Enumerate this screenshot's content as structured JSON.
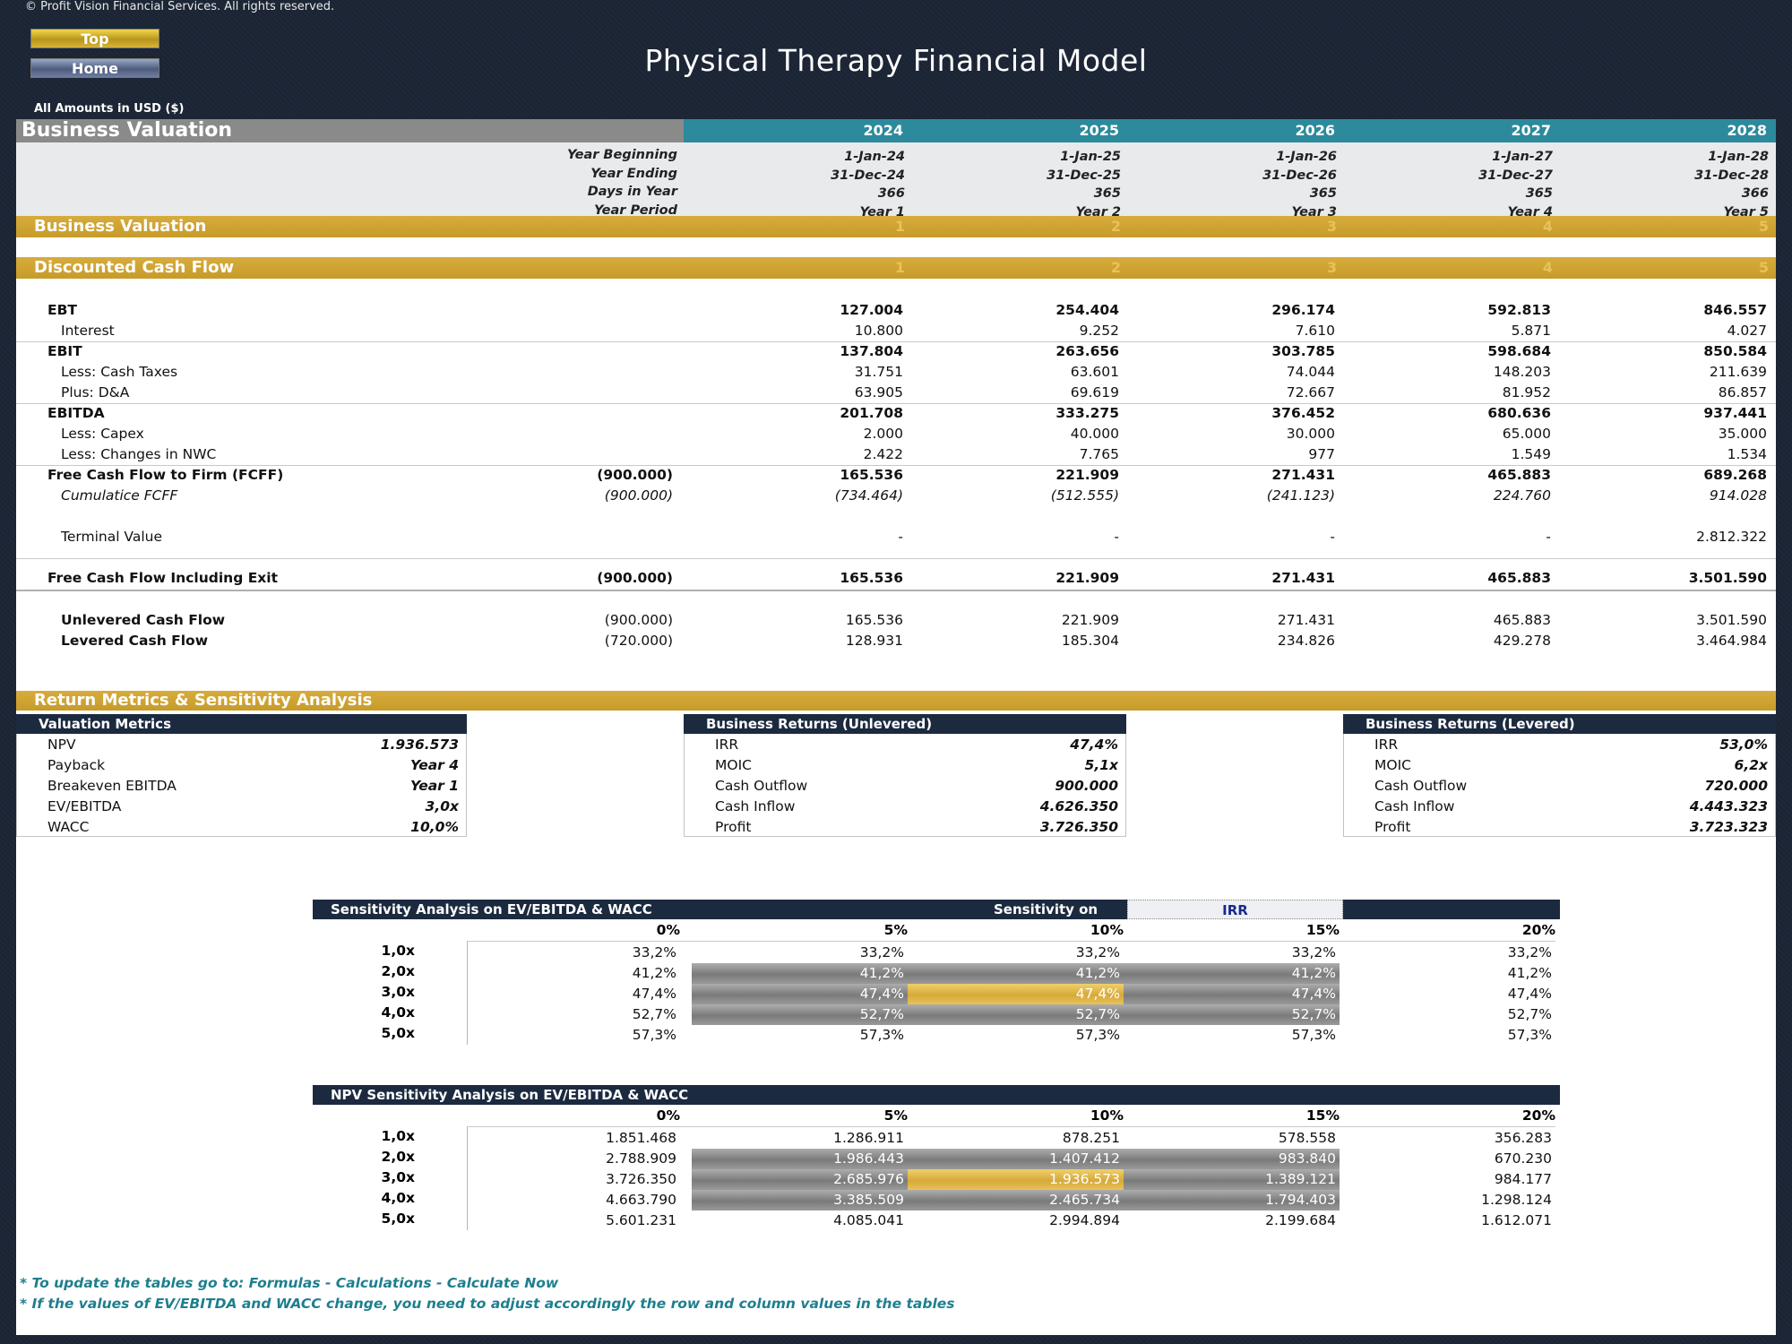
{
  "header": {
    "copyright": "© Profit Vision Financial Services. All rights reserved.",
    "top_label": "Top",
    "home_label": "Home",
    "title": "Physical Therapy Financial Model",
    "currency_note": "All Amounts in  USD ($)"
  },
  "section_title": "Business Valuation",
  "years": [
    "2024",
    "2025",
    "2026",
    "2027",
    "2028"
  ],
  "meta": {
    "year_beginning_label": "Year Beginning",
    "year_ending_label": "Year Ending",
    "days_label": "Days in Year",
    "period_label": "Year Period",
    "year_beginning": [
      "1-Jan-24",
      "1-Jan-25",
      "1-Jan-26",
      "1-Jan-27",
      "1-Jan-28"
    ],
    "year_ending": [
      "31-Dec-24",
      "31-Dec-25",
      "31-Dec-26",
      "31-Dec-27",
      "31-Dec-28"
    ],
    "days": [
      "366",
      "365",
      "365",
      "365",
      "366"
    ],
    "period": [
      "Year 1",
      "Year 2",
      "Year 3",
      "Year 4",
      "Year 5"
    ]
  },
  "bars": {
    "business_valuation": "Business Valuation",
    "dcf": "Discounted Cash Flow",
    "return_metrics": "Return Metrics & Sensitivity Analysis",
    "index": [
      "1",
      "2",
      "3",
      "4",
      "5"
    ]
  },
  "dcf_rows": [
    {
      "label": "EBT",
      "initial": "",
      "values": [
        "127.004",
        "254.404",
        "296.174",
        "592.813",
        "846.557"
      ],
      "style": "bold"
    },
    {
      "label": "Interest",
      "initial": "",
      "values": [
        "10.800",
        "9.252",
        "7.610",
        "5.871",
        "4.027"
      ],
      "style": "indent"
    },
    {
      "label": "EBIT",
      "initial": "",
      "values": [
        "137.804",
        "263.656",
        "303.785",
        "598.684",
        "850.584"
      ],
      "style": "bold"
    },
    {
      "label": "Less: Cash Taxes",
      "initial": "",
      "values": [
        "31.751",
        "63.601",
        "74.044",
        "148.203",
        "211.639"
      ],
      "style": "indent"
    },
    {
      "label": "Plus: D&A",
      "initial": "",
      "values": [
        "63.905",
        "69.619",
        "72.667",
        "81.952",
        "86.857"
      ],
      "style": "indent"
    },
    {
      "label": "EBITDA",
      "initial": "",
      "values": [
        "201.708",
        "333.275",
        "376.452",
        "680.636",
        "937.441"
      ],
      "style": "bold"
    },
    {
      "label": "Less: Capex",
      "initial": "",
      "values": [
        "2.000",
        "40.000",
        "30.000",
        "65.000",
        "35.000"
      ],
      "style": "indent"
    },
    {
      "label": "Less: Changes in NWC",
      "initial": "",
      "values": [
        "2.422",
        "7.765",
        "977",
        "1.549",
        "1.534"
      ],
      "style": "indent"
    },
    {
      "label": "Free Cash Flow to Firm (FCFF)",
      "initial": "(900.000)",
      "values": [
        "165.536",
        "221.909",
        "271.431",
        "465.883",
        "689.268"
      ],
      "style": "bold"
    },
    {
      "label": "Cumulatice FCFF",
      "initial": "(900.000)",
      "values": [
        "(734.464)",
        "(512.555)",
        "(241.123)",
        "224.760",
        "914.028"
      ],
      "style": "italic"
    },
    {
      "label": "Terminal Value",
      "initial": "",
      "values": [
        "-",
        "-",
        "-",
        "-",
        "2.812.322"
      ],
      "style": "indent"
    },
    {
      "label": "Free Cash Flow Including Exit",
      "initial": "(900.000)",
      "values": [
        "165.536",
        "221.909",
        "271.431",
        "465.883",
        "3.501.590"
      ],
      "style": "bold"
    },
    {
      "label": "Unlevered Cash Flow",
      "initial": "(900.000)",
      "values": [
        "165.536",
        "221.909",
        "271.431",
        "465.883",
        "3.501.590"
      ],
      "style": "boldindent"
    },
    {
      "label": "Levered Cash Flow",
      "initial": "(720.000)",
      "values": [
        "128.931",
        "185.304",
        "234.826",
        "429.278",
        "3.464.984"
      ],
      "style": "boldindent"
    }
  ],
  "valuation_metrics": {
    "title": "Valuation Metrics",
    "items": [
      {
        "label": "NPV",
        "value": "1.936.573"
      },
      {
        "label": "Payback",
        "value": "Year 4"
      },
      {
        "label": "Breakeven EBITDA",
        "value": "Year 1"
      },
      {
        "label": "EV/EBITDA",
        "value": "3,0x"
      },
      {
        "label": "WACC",
        "value": "10,0%"
      }
    ]
  },
  "returns_unlevered": {
    "title": "Business Returns (Unlevered)",
    "items": [
      {
        "label": "IRR",
        "value": "47,4%"
      },
      {
        "label": "MOIC",
        "value": "5,1x"
      },
      {
        "label": "Cash Outflow",
        "value": "900.000"
      },
      {
        "label": "Cash Inflow",
        "value": "4.626.350"
      },
      {
        "label": "Profit",
        "value": "3.726.350"
      }
    ]
  },
  "returns_levered": {
    "title": "Business Returns (Levered)",
    "items": [
      {
        "label": "IRR",
        "value": "53,0%"
      },
      {
        "label": "MOIC",
        "value": "6,2x"
      },
      {
        "label": "Cash Outflow",
        "value": "720.000"
      },
      {
        "label": "Cash Inflow",
        "value": "4.443.323"
      },
      {
        "label": "Profit",
        "value": "3.723.323"
      }
    ]
  },
  "sens_irr": {
    "title": "Sensitivity Analysis on EV/EBITDA & WACC",
    "sens_on_label": "Sensitivity on",
    "sens_on_value": "IRR",
    "cols": [
      "0%",
      "5%",
      "10%",
      "15%",
      "20%"
    ],
    "rows": [
      "1,0x",
      "2,0x",
      "3,0x",
      "4,0x",
      "5,0x"
    ],
    "values": [
      [
        "33,2%",
        "33,2%",
        "33,2%",
        "33,2%",
        "33,2%"
      ],
      [
        "41,2%",
        "41,2%",
        "41,2%",
        "41,2%",
        "41,2%"
      ],
      [
        "47,4%",
        "47,4%",
        "47,4%",
        "47,4%",
        "47,4%"
      ],
      [
        "52,7%",
        "52,7%",
        "52,7%",
        "52,7%",
        "52,7%"
      ],
      [
        "57,3%",
        "57,3%",
        "57,3%",
        "57,3%",
        "57,3%"
      ]
    ]
  },
  "sens_npv": {
    "title": "NPV Sensitivity Analysis on EV/EBITDA & WACC",
    "cols": [
      "0%",
      "5%",
      "10%",
      "15%",
      "20%"
    ],
    "rows": [
      "1,0x",
      "2,0x",
      "3,0x",
      "4,0x",
      "5,0x"
    ],
    "values": [
      [
        "1.851.468",
        "1.286.911",
        "878.251",
        "578.558",
        "356.283"
      ],
      [
        "2.788.909",
        "1.986.443",
        "1.407.412",
        "983.840",
        "670.230"
      ],
      [
        "3.726.350",
        "2.685.976",
        "1.936.573",
        "1.389.121",
        "984.177"
      ],
      [
        "4.663.790",
        "3.385.509",
        "2.465.734",
        "1.794.403",
        "1.298.124"
      ],
      [
        "5.601.231",
        "4.085.041",
        "2.994.894",
        "2.199.684",
        "1.612.071"
      ]
    ]
  },
  "notes": [
    "* To update the tables go to: Formulas - Calculations - Calculate Now",
    "* If the values of EV/EBITDA and WACC change, you need to adjust accordingly the row and column values in the tables"
  ]
}
